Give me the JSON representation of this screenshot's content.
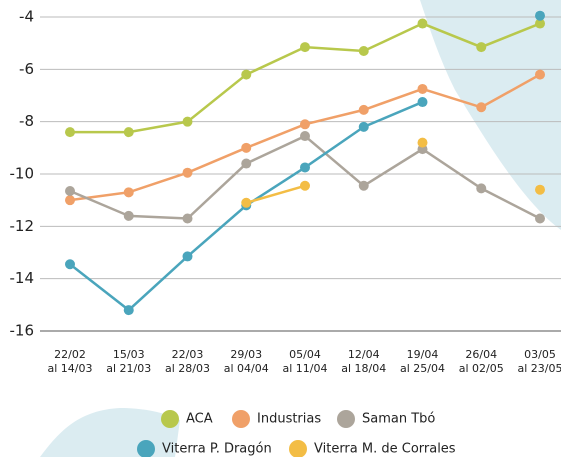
{
  "chart_data": {
    "type": "line",
    "categories": [
      "22/02\nal 14/03",
      "15/03\nal 21/03",
      "22/03\nal 28/03",
      "29/03\nal 04/04",
      "05/04\nal 11/04",
      "12/04\nal 18/04",
      "19/04\nal 25/04",
      "26/04\nal 02/05",
      "03/05\nal 23/05"
    ],
    "series": [
      {
        "name": "ACA",
        "color": "#b8c84c",
        "values": [
          -8.4,
          -8.4,
          -8.0,
          -6.2,
          -5.15,
          -5.3,
          -4.25,
          -5.15,
          -4.25
        ]
      },
      {
        "name": "Industrias",
        "color": "#f0a068",
        "values": [
          -11.0,
          -10.7,
          -9.95,
          -9.0,
          -8.1,
          -7.55,
          -6.75,
          -7.45,
          -6.2
        ]
      },
      {
        "name": "Saman Tbó",
        "color": "#aca59b",
        "values": [
          -10.65,
          -11.6,
          -11.7,
          -9.6,
          -8.55,
          -10.45,
          -9.05,
          -10.55,
          -11.7
        ]
      },
      {
        "name": "Viterra P. Dragón",
        "color": "#4aa5bc",
        "values": [
          -13.45,
          -15.2,
          -13.15,
          -11.2,
          -9.75,
          -8.2,
          -7.25,
          null,
          -3.95
        ]
      },
      {
        "name": "Viterra M. de Corrales",
        "color": "#f3bd45",
        "values": [
          null,
          null,
          null,
          -11.1,
          -10.45,
          null,
          -8.8,
          null,
          -10.6
        ]
      }
    ],
    "ylim": [
      -16,
      -4
    ],
    "yticks": [
      -4,
      -6,
      -8,
      -10,
      -12,
      -14,
      -16
    ],
    "grid": true
  }
}
